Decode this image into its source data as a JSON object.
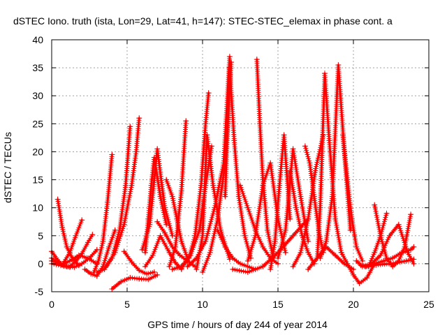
{
  "chart_data": {
    "type": "line",
    "title": "dSTEC Iono. truth (ista, Lon=29, Lat=41, h=147): STEC-STEC_elemax in phase cont. a",
    "xlabel": "GPS time / hours of day 244 of year 2014",
    "ylabel": "dSTEC  / TECUs",
    "xlim": [
      0,
      25
    ],
    "ylim": [
      -5,
      40
    ],
    "xticks": [
      0,
      5,
      10,
      15,
      20,
      25
    ],
    "yticks": [
      -5,
      0,
      5,
      10,
      15,
      20,
      25,
      30,
      35,
      40
    ],
    "grid": true,
    "legend": "none",
    "marker": "plus",
    "color": "#ff0000",
    "series": [
      {
        "x": [
          0.0,
          0.3,
          0.7,
          1.2,
          1.6,
          2.0
        ],
        "y": [
          2.2,
          1.0,
          -0.2,
          2.0,
          5.0,
          7.8
        ]
      },
      {
        "x": [
          0.4,
          0.7,
          1.0,
          1.4,
          1.8
        ],
        "y": [
          11.5,
          6.5,
          3.0,
          0.8,
          -0.3
        ]
      },
      {
        "x": [
          0.0,
          0.4,
          0.8,
          1.2,
          1.6,
          2.0,
          2.4,
          2.7
        ],
        "y": [
          0.5,
          0.2,
          -0.4,
          -0.6,
          0.5,
          1.8,
          3.8,
          5.2
        ]
      },
      {
        "x": [
          0.0,
          0.5,
          1.0,
          1.5,
          2.0,
          2.5,
          3.0
        ],
        "y": [
          1.0,
          0.0,
          -0.5,
          -0.6,
          0.0,
          1.0,
          2.5
        ]
      },
      {
        "x": [
          0.0,
          0.6,
          1.2,
          1.8,
          2.4,
          3.0
        ],
        "y": [
          0.0,
          -0.3,
          0.5,
          1.5,
          1.0,
          0.0
        ]
      },
      {
        "x": [
          2.2,
          2.6,
          3.0,
          3.4,
          3.8,
          4.2
        ],
        "y": [
          -1.0,
          -1.8,
          -2.2,
          -0.5,
          3.0,
          6.0
        ]
      },
      {
        "x": [
          2.8,
          3.1,
          3.4,
          3.7,
          4.0
        ],
        "y": [
          -1.5,
          0.5,
          4.0,
          11.0,
          19.5
        ]
      },
      {
        "x": [
          3.0,
          3.5,
          4.0,
          4.5,
          4.9,
          5.2
        ],
        "y": [
          -1.5,
          -1.0,
          1.0,
          6.0,
          14.0,
          24.5
        ]
      },
      {
        "x": [
          3.6,
          4.2,
          4.8,
          5.3,
          5.6,
          5.8
        ],
        "y": [
          -0.5,
          2.0,
          7.0,
          14.0,
          20.0,
          26.0
        ]
      },
      {
        "x": [
          4.0,
          4.6,
          5.2,
          5.8,
          6.4,
          7.0
        ],
        "y": [
          -4.5,
          -3.2,
          -2.5,
          -2.7,
          -2.8,
          -2.0
        ]
      },
      {
        "x": [
          4.8,
          5.3,
          5.8,
          6.3,
          6.8
        ],
        "y": [
          2.2,
          0.3,
          -1.2,
          -1.8,
          -1.5
        ]
      },
      {
        "x": [
          6.2,
          6.4,
          6.6,
          6.8,
          7.2,
          7.6
        ],
        "y": [
          2.0,
          8.0,
          14.0,
          19.0,
          12.0,
          7.0
        ]
      },
      {
        "x": [
          6.0,
          6.5,
          7.0,
          7.5,
          8.0
        ],
        "y": [
          2.5,
          7.0,
          20.5,
          10.0,
          5.0
        ]
      },
      {
        "x": [
          6.2,
          6.7,
          7.2,
          7.8,
          8.2,
          8.6
        ],
        "y": [
          -0.5,
          1.5,
          5.0,
          2.0,
          0.2,
          -1.0
        ]
      },
      {
        "x": [
          7.0,
          7.5,
          8.0,
          8.5,
          9.0,
          9.5
        ],
        "y": [
          7.5,
          5.5,
          3.0,
          1.5,
          0.5,
          -0.5
        ]
      },
      {
        "x": [
          7.6,
          8.0,
          8.3,
          8.6,
          9.0
        ],
        "y": [
          15.0,
          12.0,
          8.0,
          4.0,
          1.0
        ]
      },
      {
        "x": [
          7.8,
          8.2,
          8.6,
          8.9
        ],
        "y": [
          -0.5,
          3.0,
          13.0,
          25.5
        ]
      },
      {
        "x": [
          8.0,
          8.6,
          9.2,
          9.8,
          10.2,
          10.6
        ],
        "y": [
          -1.0,
          -0.5,
          1.5,
          6.0,
          14.0,
          21.0
        ]
      },
      {
        "x": [
          8.6,
          9.1,
          9.5,
          9.9,
          10.2,
          10.4
        ],
        "y": [
          -0.8,
          1.0,
          5.0,
          14.0,
          25.0,
          30.5
        ]
      },
      {
        "x": [
          9.6,
          10.0,
          10.3,
          10.7,
          11.2,
          11.8
        ],
        "y": [
          -1.0,
          5.0,
          23.0,
          14.0,
          6.0,
          0.8
        ]
      },
      {
        "x": [
          9.0,
          9.6,
          10.2,
          10.8,
          11.4,
          11.8
        ],
        "y": [
          -0.5,
          1.0,
          4.0,
          10.0,
          18.0,
          37.0
        ]
      },
      {
        "x": [
          10.0,
          10.5,
          11.0,
          11.5,
          11.9
        ],
        "y": [
          -1.5,
          2.0,
          8.0,
          18.0,
          36.0
        ]
      },
      {
        "x": [
          11.5,
          11.8,
          12.1,
          12.4,
          12.8,
          13.2
        ],
        "y": [
          12.0,
          35.0,
          22.0,
          12.0,
          5.0,
          1.0
        ]
      },
      {
        "x": [
          11.0,
          11.5,
          12.0,
          12.5,
          13.0,
          13.5
        ],
        "y": [
          6.0,
          3.0,
          1.0,
          0.0,
          -0.5,
          -1.0
        ]
      },
      {
        "x": [
          12.5,
          13.0,
          13.5,
          14.0,
          14.5,
          15.0
        ],
        "y": [
          14.0,
          10.0,
          6.0,
          3.0,
          1.0,
          0.0
        ]
      },
      {
        "x": [
          13.6,
          13.8,
          14.0,
          14.3,
          14.7
        ],
        "y": [
          36.5,
          25.0,
          15.0,
          6.0,
          1.0
        ]
      },
      {
        "x": [
          13.0,
          13.5,
          14.0,
          14.5,
          15.0,
          15.5
        ],
        "y": [
          0.5,
          5.0,
          14.0,
          18.0,
          8.0,
          2.0
        ]
      },
      {
        "x": [
          14.5,
          14.8,
          15.1,
          15.4,
          15.8
        ],
        "y": [
          -1.0,
          4.0,
          14.0,
          23.0,
          8.0
        ]
      },
      {
        "x": [
          12.0,
          13.0,
          14.0,
          15.0,
          16.0,
          17.0
        ],
        "y": [
          -1.0,
          -1.5,
          -0.5,
          2.0,
          5.0,
          8.0
        ]
      },
      {
        "x": [
          15.0,
          15.5,
          16.0,
          16.5,
          17.0
        ],
        "y": [
          1.0,
          6.0,
          20.5,
          12.0,
          4.0
        ]
      },
      {
        "x": [
          15.8,
          16.2,
          16.6,
          17.0,
          17.4
        ],
        "y": [
          16.5,
          10.0,
          5.0,
          2.0,
          0.0
        ]
      },
      {
        "x": [
          16.0,
          16.5,
          17.0,
          17.5,
          18.0
        ],
        "y": [
          -0.5,
          2.0,
          8.0,
          17.0,
          23.0
        ]
      },
      {
        "x": [
          16.8,
          17.1,
          17.4,
          17.7,
          18.0
        ],
        "y": [
          21.0,
          18.0,
          12.0,
          6.0,
          2.0
        ]
      },
      {
        "x": [
          17.6,
          17.8,
          18.1,
          18.4,
          18.8,
          19.2
        ],
        "y": [
          1.0,
          10.0,
          34.0,
          22.0,
          8.0,
          2.0
        ]
      },
      {
        "x": [
          17.8,
          18.2,
          18.6,
          19.0,
          19.4,
          19.8
        ],
        "y": [
          1.0,
          4.0,
          12.0,
          35.5,
          20.0,
          6.0
        ]
      },
      {
        "x": [
          17.0,
          17.6,
          18.2,
          18.8,
          19.4,
          20.0
        ],
        "y": [
          -1.0,
          1.0,
          3.0,
          1.5,
          0.0,
          -1.0
        ]
      },
      {
        "x": [
          19.3,
          19.6,
          19.9,
          20.2,
          20.6
        ],
        "y": [
          23.0,
          15.0,
          8.0,
          3.0,
          0.5
        ]
      },
      {
        "x": [
          19.2,
          19.6,
          20.0,
          20.4,
          20.9,
          21.4
        ],
        "y": [
          2.0,
          0.0,
          -2.0,
          -3.5,
          -2.5,
          0.0
        ]
      },
      {
        "x": [
          20.2,
          20.6,
          21.0,
          21.4,
          21.8,
          22.2
        ],
        "y": [
          0.5,
          -0.5,
          -0.5,
          2.0,
          5.0,
          9.0
        ]
      },
      {
        "x": [
          21.4,
          21.8,
          22.2,
          22.6,
          23.0,
          23.4,
          23.8
        ],
        "y": [
          10.5,
          5.0,
          1.0,
          -0.5,
          0.5,
          3.0,
          8.8
        ]
      },
      {
        "x": [
          21.2,
          21.8,
          22.4,
          23.0,
          23.6,
          24.0
        ],
        "y": [
          0.0,
          1.5,
          5.0,
          7.0,
          2.0,
          0.0
        ]
      },
      {
        "x": [
          20.8,
          21.4,
          22.0,
          22.6,
          23.2,
          23.8,
          24.0
        ],
        "y": [
          -0.5,
          0.0,
          0.5,
          1.0,
          2.0,
          2.5,
          3.0
        ]
      },
      {
        "x": [
          20.5,
          21.5,
          22.5,
          23.5,
          24.0
        ],
        "y": [
          -0.3,
          -0.2,
          0.0,
          0.5,
          0.8
        ]
      }
    ]
  }
}
